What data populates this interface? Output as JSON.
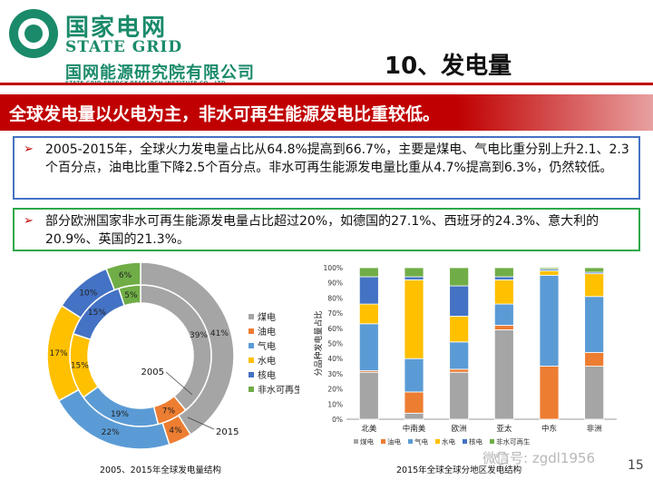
{
  "header": {
    "logo_cn": "国家电网",
    "logo_en": "STATE GRID",
    "org_cn": "国网能源研究院有限公司",
    "org_en": "STATE GRID ENERGY RESEARCH INSTITUTE CO., LTD.",
    "slide_title": "10、发电量"
  },
  "banner": "全球发电量以火电为主，非水可再生能源发电比重较低。",
  "bullets": [
    "2005-2015年，全球火力发电量占比从64.8%提高到66.7%，主要是煤电、气电比重分别上升2.1、2.3个百分点，油电比重下降2.5个百分点。非水可再生能源发电量比重从4.7%提高到6.3%，仍然较低。",
    "部分欧洲国家非水可再生能源发电量占比超过20%，如德国的27.1%、西班牙的24.3%、意大利的20.9%、英国的21.3%。"
  ],
  "bullet_marker": "➢",
  "colors": {
    "煤电": "#a5a5a5",
    "油电": "#ed7d31",
    "气电": "#5b9bd5",
    "水电": "#ffc000",
    "核电": "#4472c4",
    "非水可再生": "#70ad47",
    "banner": "#c00000",
    "brand": "#1a8a6a"
  },
  "chart_data": [
    {
      "type": "donut",
      "caption": "2005、2015年全球发电量结构",
      "legend": [
        "煤电",
        "油电",
        "气电",
        "水电",
        "核电",
        "非水可再生"
      ],
      "legend_position": "right",
      "rings": [
        {
          "name": "2005",
          "position": "inner",
          "values": [
            39,
            7,
            19,
            15,
            15,
            5
          ],
          "labels": [
            "39%",
            "7%",
            "19%",
            "15%",
            "15%",
            "5%"
          ]
        },
        {
          "name": "2015",
          "position": "outer",
          "values": [
            41,
            4,
            22,
            17,
            10,
            6
          ],
          "labels": [
            "41%",
            "4%",
            "22%",
            "17%",
            "10%",
            "6%"
          ]
        }
      ]
    },
    {
      "type": "bar",
      "stacked": true,
      "caption": "2015年全球全球分地区发电结构",
      "ylabel": "分品种发电量占比",
      "ylim": [
        0,
        100
      ],
      "yticks": [
        "0%",
        "10%",
        "20%",
        "30%",
        "40%",
        "50%",
        "60%",
        "70%",
        "80%",
        "90%",
        "100%"
      ],
      "categories": [
        "北美",
        "中南美",
        "欧洲",
        "亚太",
        "中东",
        "非洲"
      ],
      "legend_position": "bottom",
      "series": [
        {
          "name": "煤电",
          "values": [
            31,
            4,
            31,
            59,
            0,
            35
          ]
        },
        {
          "name": "油电",
          "values": [
            1,
            14,
            2,
            3,
            35,
            9
          ]
        },
        {
          "name": "气电",
          "values": [
            31,
            22,
            18,
            14,
            60,
            37
          ]
        },
        {
          "name": "水电",
          "values": [
            13,
            52,
            17,
            16,
            3,
            15
          ]
        },
        {
          "name": "核电",
          "values": [
            18,
            2,
            20,
            2,
            1,
            1
          ]
        },
        {
          "name": "非水可再生",
          "values": [
            6,
            6,
            12,
            6,
            1,
            3
          ]
        }
      ]
    }
  ],
  "watermark": "微信号: zgdl1956",
  "page_number": "15"
}
